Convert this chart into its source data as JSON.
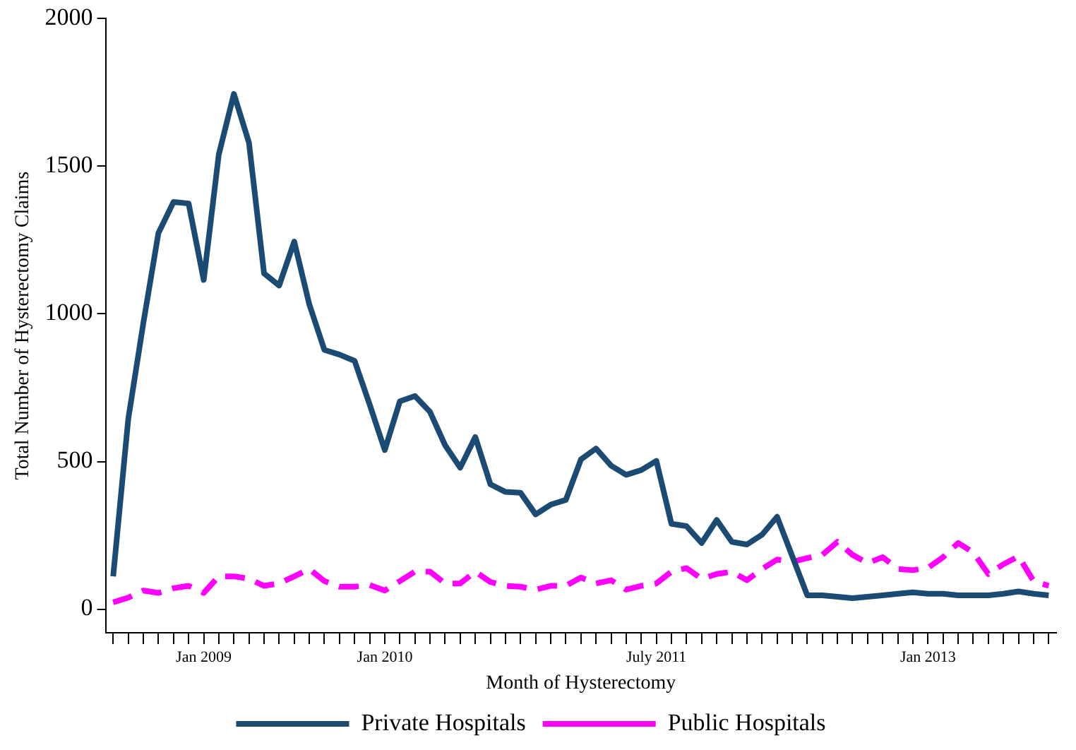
{
  "chart_data": {
    "type": "line",
    "xlabel": "Month of Hysterectomy",
    "ylabel": "Total Number of Hysterectomy Claims",
    "categories": [
      null,
      null,
      null,
      null,
      null,
      null,
      "Jan 2009",
      null,
      null,
      null,
      null,
      null,
      null,
      null,
      null,
      null,
      null,
      null,
      "Jan 2010",
      null,
      null,
      null,
      null,
      null,
      null,
      null,
      null,
      null,
      null,
      null,
      null,
      null,
      null,
      null,
      null,
      null,
      "July 2011",
      null,
      null,
      null,
      null,
      null,
      null,
      null,
      null,
      null,
      null,
      null,
      null,
      null,
      null,
      null,
      null,
      null,
      "Jan 2013",
      null,
      null,
      null,
      null,
      null,
      null,
      null,
      null
    ],
    "series": [
      {
        "name": "Private Hospitals",
        "color": "#1b4a72",
        "line_style": "solid",
        "values": [
          111,
          644,
          969,
          1274,
          1379,
          1374,
          1115,
          1540,
          1745,
          1580,
          1137,
          1096,
          1245,
          1032,
          878,
          862,
          841,
          693,
          539,
          704,
          722,
          668,
          555,
          479,
          583,
          423,
          397,
          394,
          321,
          354,
          370,
          507,
          544,
          486,
          455,
          471,
          502,
          289,
          281,
          224,
          302,
          228,
          219,
          252,
          313,
          180,
          47,
          47,
          42,
          37,
          42,
          47,
          52,
          57,
          52,
          52,
          47,
          47,
          47,
          52,
          60,
          52,
          47
        ]
      },
      {
        "name": "Public Hospitals",
        "color": "#ff00ff",
        "line_style": "dashed",
        "values": [
          23,
          39,
          63,
          55,
          71,
          79,
          55,
          111,
          111,
          103,
          79,
          87,
          111,
          136,
          95,
          76,
          76,
          82,
          63,
          95,
          127,
          127,
          87,
          87,
          127,
          92,
          79,
          76,
          66,
          79,
          79,
          107,
          87,
          98,
          66,
          79,
          87,
          127,
          139,
          103,
          119,
          127,
          98,
          136,
          168,
          160,
          173,
          184,
          228,
          184,
          156,
          176,
          136,
          132,
          140,
          176,
          224,
          192,
          119,
          152,
          179,
          95,
          79
        ]
      }
    ],
    "ylim": [
      -80,
      2000
    ],
    "yticks": [
      0,
      500,
      1000,
      1500,
      2000
    ],
    "grid": false,
    "legend": "bottom",
    "marker": "none"
  }
}
